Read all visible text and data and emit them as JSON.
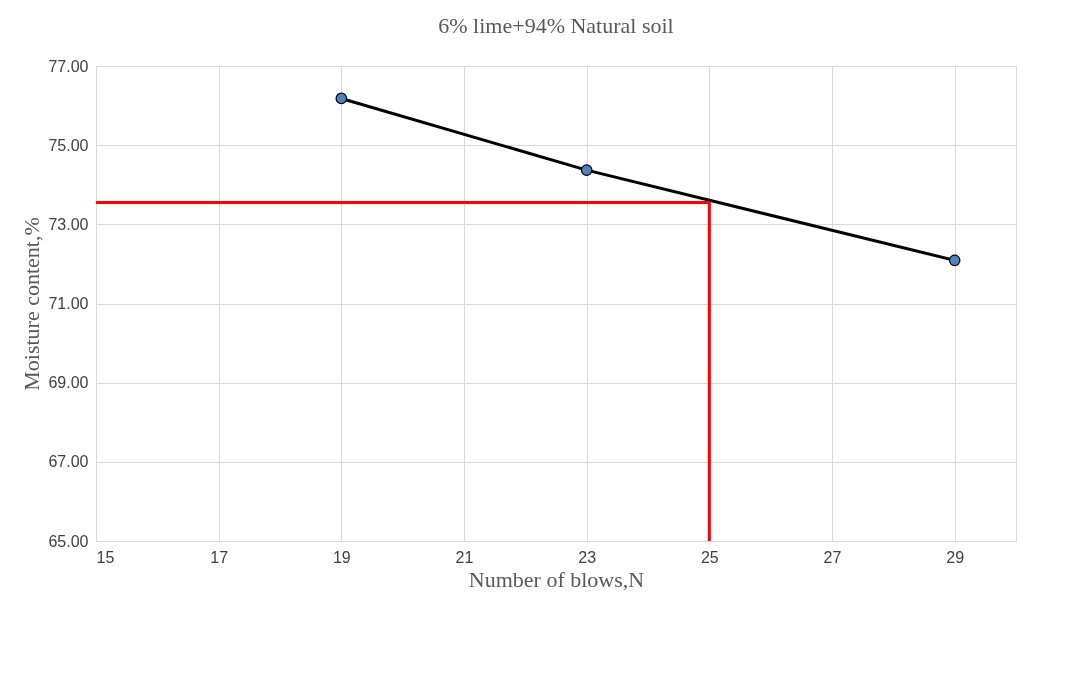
{
  "chart_data": {
    "type": "line",
    "title": "6% lime+94% Natural soil",
    "xlabel": "Number of blows,N",
    "ylabel": "Moisture content,%",
    "series": [
      {
        "x": [
          19,
          23,
          29
        ],
        "values": [
          76.18,
          74.37,
          72.09
        ],
        "color": "#000000",
        "marker": "circle"
      },
      {
        "x": [
          15,
          25,
          25
        ],
        "values": [
          73.55,
          73.55,
          65
        ],
        "color": "#ff0000",
        "marker": "none"
      }
    ],
    "xlim": [
      15,
      30
    ],
    "xticks": [
      15,
      17,
      19,
      21,
      23,
      25,
      27,
      29
    ],
    "ylim": [
      65,
      77
    ],
    "yticks": [
      {
        "value": 65,
        "label": "65.00"
      },
      {
        "value": 67,
        "label": "67.00"
      },
      {
        "value": 69,
        "label": "69.00"
      },
      {
        "value": 71,
        "label": "71.00"
      },
      {
        "value": 73,
        "label": "73.00"
      },
      {
        "value": 75,
        "label": "75.00"
      },
      {
        "value": 77,
        "label": "77.00"
      }
    ],
    "grid": true,
    "line_style": "solid"
  }
}
